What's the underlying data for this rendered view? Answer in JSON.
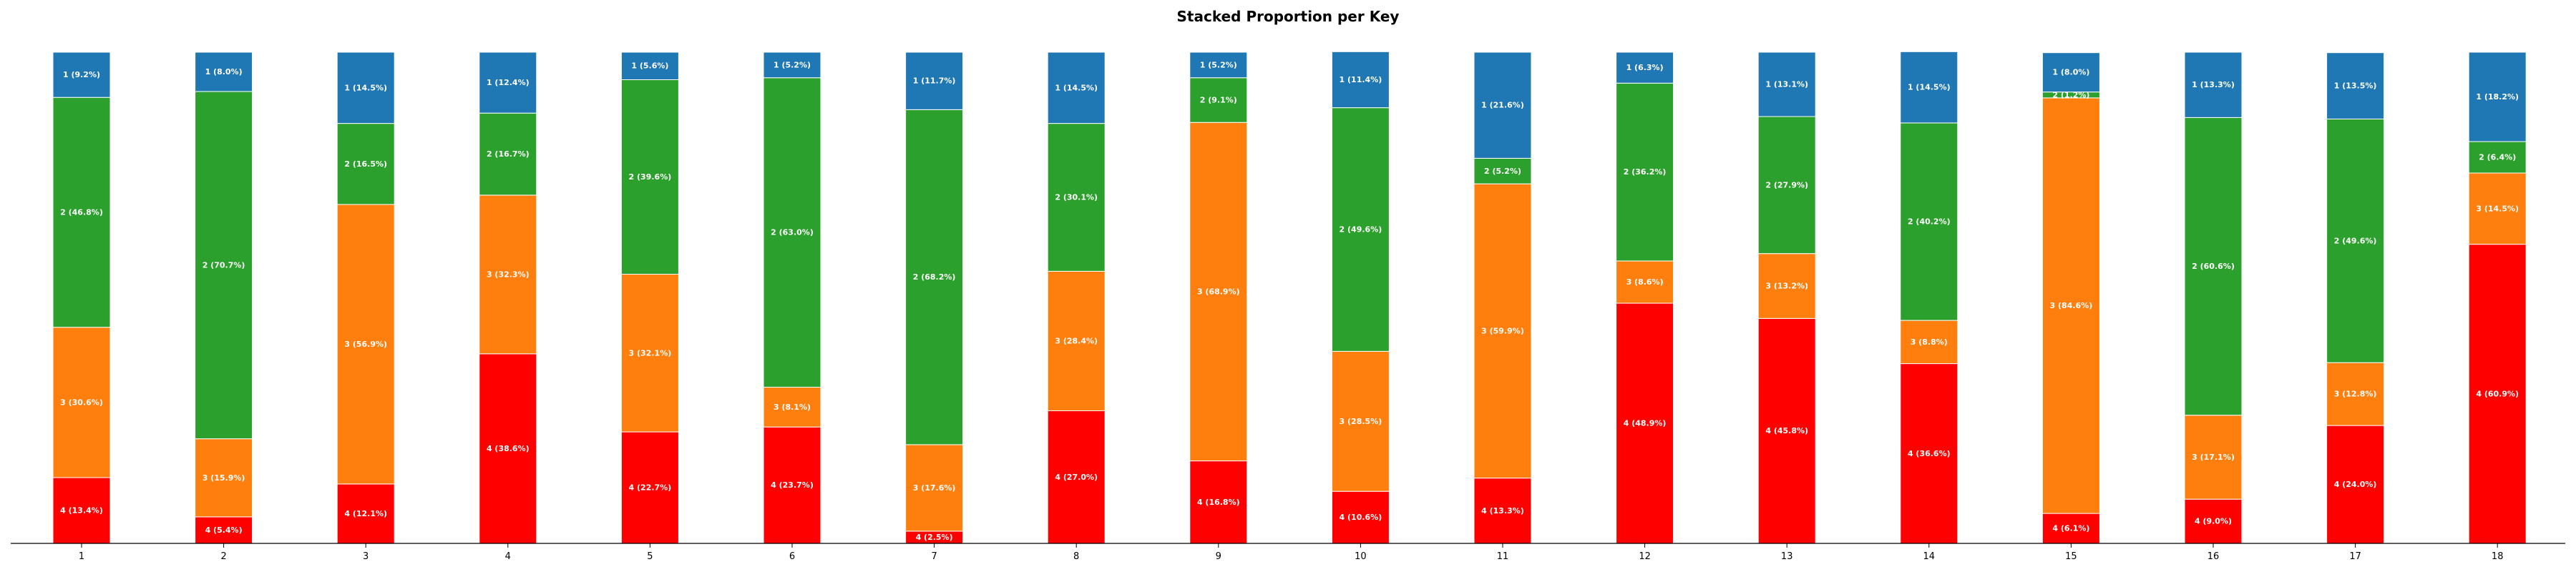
{
  "chart_data": {
    "type": "bar",
    "stacked": true,
    "title": "Stacked Proportion per Key",
    "xlabel": "",
    "ylabel": "",
    "ylim": [
      0,
      100
    ],
    "grid": false,
    "legend": "none",
    "categories": [
      "1",
      "2",
      "3",
      "4",
      "5",
      "6",
      "7",
      "8",
      "9",
      "10",
      "11",
      "12",
      "13",
      "14",
      "15",
      "16",
      "17",
      "18"
    ],
    "stack_order_bottom_to_top": [
      "4",
      "3",
      "2",
      "1"
    ],
    "series": [
      {
        "key": "4",
        "color": "#ff0000",
        "values": [
          13.4,
          5.4,
          12.1,
          38.6,
          22.7,
          23.7,
          2.5,
          27.0,
          16.8,
          10.6,
          13.3,
          48.9,
          45.8,
          36.6,
          6.1,
          9.0,
          24.0,
          60.9
        ],
        "labels": [
          "4 (13.4%)",
          "4 (5.4%)",
          "4 (12.1%)",
          "4 (38.6%)",
          "4 (22.7%)",
          "4 (23.7%)",
          "4 (2.5%)",
          "4 (27.0%)",
          "4 (16.8%)",
          "4 (10.6%)",
          "4 (13.3%)",
          "4 (48.9%)",
          "4 (45.8%)",
          "4 (36.6%)",
          "4 (6.1%)",
          "4 (9.0%)",
          "4 (24.0%)",
          "4 (60.9%)"
        ]
      },
      {
        "key": "3",
        "color": "#ff7f0e",
        "values": [
          30.6,
          15.9,
          56.9,
          32.3,
          32.1,
          8.1,
          17.6,
          28.4,
          68.9,
          28.5,
          59.9,
          8.6,
          13.2,
          8.8,
          84.6,
          17.1,
          12.8,
          14.5
        ],
        "labels": [
          "3 (30.6%)",
          "3 (15.9%)",
          "3 (56.9%)",
          "3 (32.3%)",
          "3 (32.1%)",
          "3 (8.1%)",
          "3 (17.6%)",
          "3 (28.4%)",
          "3 (68.9%)",
          "3 (28.5%)",
          "3 (59.9%)",
          "3 (8.6%)",
          "3 (13.2%)",
          "3 (8.8%)",
          "3 (84.6%)",
          "3 (17.1%)",
          "3 (12.8%)",
          "3 (14.5%)"
        ]
      },
      {
        "key": "2",
        "color": "#2ca02c",
        "values": [
          46.8,
          70.7,
          16.5,
          16.7,
          39.6,
          63.0,
          68.2,
          30.1,
          9.1,
          49.6,
          5.2,
          36.2,
          27.9,
          40.2,
          1.2,
          60.6,
          49.6,
          6.4
        ],
        "labels": [
          "2 (46.8%)",
          "2 (70.7%)",
          "2 (16.5%)",
          "2 (16.7%)",
          "2 (39.6%)",
          "2 (63.0%)",
          "2 (68.2%)",
          "2 (30.1%)",
          "2 (9.1%)",
          "2 (49.6%)",
          "2 (5.2%)",
          "2 (36.2%)",
          "2 (27.9%)",
          "2 (40.2%)",
          "2 (1.2%)",
          "2 (60.6%)",
          "2 (49.6%)",
          "2 (6.4%)"
        ]
      },
      {
        "key": "1",
        "color": "#1f77b4",
        "values": [
          9.2,
          8.0,
          14.5,
          12.4,
          5.6,
          5.2,
          11.7,
          14.5,
          5.2,
          11.4,
          21.6,
          6.3,
          13.1,
          14.5,
          8.0,
          13.3,
          13.5,
          18.2
        ],
        "labels": [
          "1 (9.2%)",
          "1 (8.0%)",
          "1 (14.5%)",
          "1 (12.4%)",
          "1 (5.6%)",
          "1 (5.2%)",
          "1 (11.7%)",
          "1 (14.5%)",
          "1 (5.2%)",
          "1 (11.4%)",
          "1 (21.6%)",
          "1 (6.3%)",
          "1 (13.1%)",
          "1 (14.5%)",
          "1 (8.0%)",
          "1 (13.3%)",
          "1 (13.5%)",
          "1 (18.2%)"
        ]
      }
    ]
  }
}
